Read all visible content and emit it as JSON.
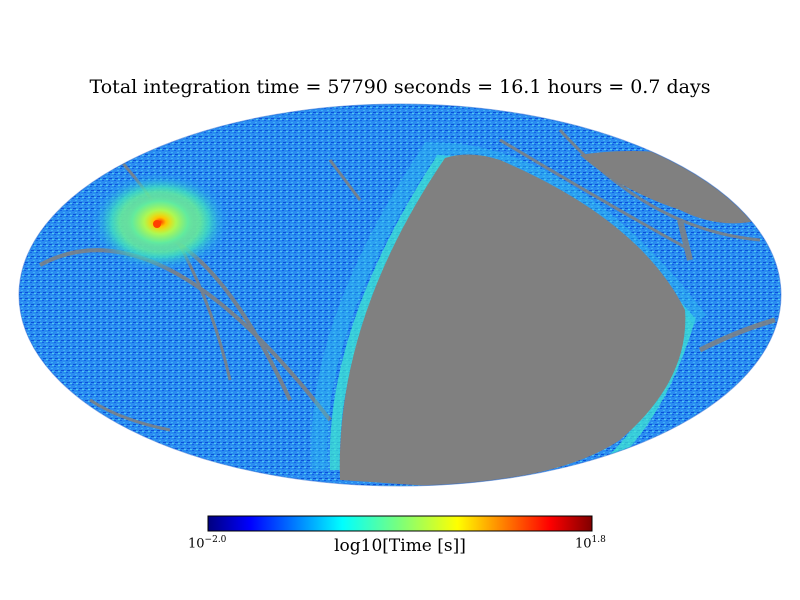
{
  "chart_data": {
    "type": "heatmap",
    "projection": "mollweide",
    "title": "Total integration time = 57790 seconds = 16.1 hours = 0.7 days",
    "colormap": "jet",
    "colorbar": {
      "label": "log10[Time [s]]",
      "min_label_base": "10",
      "min_label_exp": "−2.0",
      "max_label_base": "10",
      "max_label_exp": "1.8",
      "min": -2.0,
      "max": 1.8
    },
    "unobserved_color": "#808080",
    "hotspot_log10_time": 1.6
  }
}
